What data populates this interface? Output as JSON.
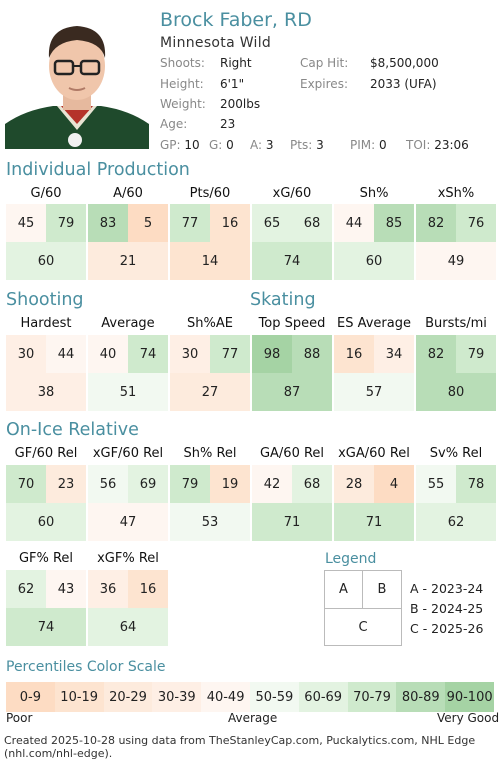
{
  "header": {
    "name": "Brock Faber, RD",
    "team": "Minnesota Wild",
    "shoots_label": "Shoots:",
    "shoots": "Right",
    "height_label": "Height:",
    "height": "6'1\"",
    "weight_label": "Weight:",
    "weight": "200lbs",
    "age_label": "Age:",
    "age": "23",
    "caphit_label": "Cap Hit:",
    "caphit": "$8,500,000",
    "expires_label": "Expires:",
    "expires": "2033 (UFA)"
  },
  "statline": [
    {
      "k": "GP:",
      "v": "10"
    },
    {
      "k": "G:",
      "v": "0"
    },
    {
      "k": "A:",
      "v": "3"
    },
    {
      "k": "Pts:",
      "v": "3"
    },
    {
      "k": "PIM:",
      "v": "0"
    },
    {
      "k": "TOI:",
      "v": "23:06"
    }
  ],
  "sections": {
    "individual": "Individual Production",
    "shooting": "Shooting",
    "skating": "Skating",
    "onice": "On-Ice Relative",
    "legend": "Legend",
    "scale": "Percentiles Color Scale"
  },
  "metrics": {
    "individual": [
      {
        "label": "G/60",
        "a": 45,
        "b": 79,
        "c": 60
      },
      {
        "label": "A/60",
        "a": 83,
        "b": 5,
        "c": 21
      },
      {
        "label": "Pts/60",
        "a": 77,
        "b": 16,
        "c": 14
      },
      {
        "label": "xG/60",
        "a": 65,
        "b": 68,
        "c": 74
      },
      {
        "label": "Sh%",
        "a": 44,
        "b": 85,
        "c": 60
      },
      {
        "label": "xSh%",
        "a": 82,
        "b": 76,
        "c": 49
      }
    ],
    "shooting": [
      {
        "label": "Hardest",
        "a": 30,
        "b": 44,
        "c": 38
      },
      {
        "label": "Average",
        "a": 40,
        "b": 74,
        "c": 51
      },
      {
        "label": "Sh%AE",
        "a": 30,
        "b": 77,
        "c": 27
      }
    ],
    "skating": [
      {
        "label": "Top Speed",
        "a": 98,
        "b": 88,
        "c": 87
      },
      {
        "label": "ES Average",
        "a": 16,
        "b": 34,
        "c": 57
      },
      {
        "label": "Bursts/mi",
        "a": 82,
        "b": 79,
        "c": 80
      }
    ],
    "onice": [
      {
        "label": "GF/60 Rel",
        "a": 70,
        "b": 23,
        "c": 60
      },
      {
        "label": "xGF/60 Rel",
        "a": 56,
        "b": 69,
        "c": 47
      },
      {
        "label": "Sh% Rel",
        "a": 79,
        "b": 19,
        "c": 53
      },
      {
        "label": "GA/60 Rel",
        "a": 42,
        "b": 68,
        "c": 71
      },
      {
        "label": "xGA/60 Rel",
        "a": 28,
        "b": 4,
        "c": 71
      },
      {
        "label": "Sv% Rel",
        "a": 55,
        "b": 78,
        "c": 62
      }
    ],
    "onice2": [
      {
        "label": "GF% Rel",
        "a": 62,
        "b": 43,
        "c": 74
      },
      {
        "label": "xGF% Rel",
        "a": 36,
        "b": 16,
        "c": 64
      }
    ]
  },
  "legend": {
    "a": "A",
    "b": "B",
    "c": "C",
    "a_desc": "A - 2023-24",
    "b_desc": "B - 2024-25",
    "c_desc": "C - 2025-26"
  },
  "scale": {
    "buckets": [
      "0-9",
      "10-19",
      "20-29",
      "30-39",
      "40-49",
      "50-59",
      "60-69",
      "70-79",
      "80-89",
      "90-100"
    ],
    "poor": "Poor",
    "average": "Average",
    "very_good": "Very Good"
  },
  "colors": {
    "scale": [
      "#fddcc3",
      "#fde4d0",
      "#fdebdd",
      "#feefe5",
      "#fef6f1",
      "#f2f9f1",
      "#e3f3e1",
      "#cfeacd",
      "#b8ddb7",
      "#a5d3a4"
    ],
    "accent": "#4a8fa0"
  },
  "footer": "Created 2025-10-28 using data from TheStanleyCap.com, Puckalytics.com, NHL Edge (nhl.com/nhl-edge)."
}
